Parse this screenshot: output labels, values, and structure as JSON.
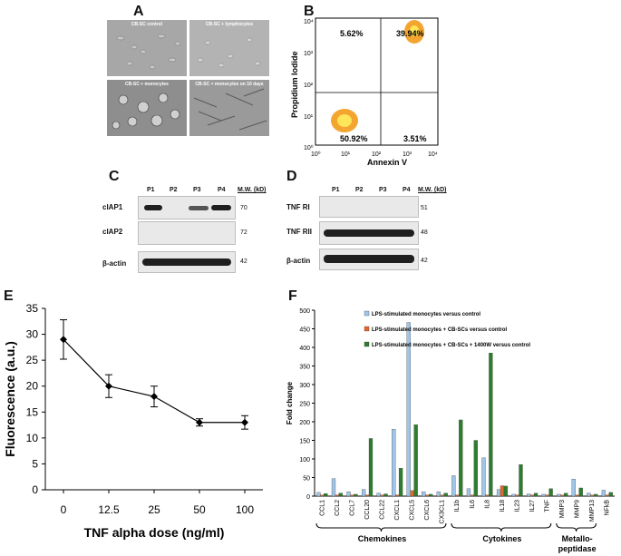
{
  "panels": {
    "A": "A",
    "B": "B",
    "C": "C",
    "D": "D",
    "E": "E",
    "F": "F"
  },
  "panelA": {
    "captions": [
      "CB-SC control",
      "CB-SC + lymphocytes",
      "CB-SC + monocytes",
      "CB-SC + monocytes on 10 days"
    ]
  },
  "panelB": {
    "xlabel": "Annexin V",
    "ylabel": "Propidium Iodide",
    "quadrants": {
      "ul": "5.62%",
      "ur": "39.94%",
      "ll": "50.92%",
      "lr": "3.51%"
    },
    "ticks": [
      "10⁰",
      "10¹",
      "10²",
      "10³",
      "10⁴"
    ]
  },
  "panelC": {
    "lanes": [
      "P1",
      "P2",
      "P3",
      "P4"
    ],
    "mw_header": "M.W. (kD)",
    "rows": [
      {
        "label": "cIAP1",
        "mw": "70"
      },
      {
        "label": "cIAP2",
        "mw": "72"
      },
      {
        "label": "β-actin",
        "mw": "42"
      }
    ]
  },
  "panelD": {
    "lanes": [
      "P1",
      "P2",
      "P3",
      "P4"
    ],
    "mw_header": "M.W. (kD)",
    "rows": [
      {
        "label": "TNF RI",
        "mw": "51"
      },
      {
        "label": "TNF RII",
        "mw": "48"
      },
      {
        "label": "β-actin",
        "mw": "42"
      }
    ]
  },
  "chart_data": [
    {
      "panel": "E",
      "type": "line",
      "xlabel": "TNF alpha dose (ng/ml)",
      "ylabel": "Fluorescence (a.u.)",
      "categories": [
        "0",
        "12.5",
        "25",
        "50",
        "100"
      ],
      "values": [
        29,
        20,
        18,
        13,
        13
      ],
      "errors": [
        3.8,
        2.2,
        2,
        0.7,
        1.3
      ],
      "ylim": [
        0,
        35
      ],
      "yticks": [
        0,
        5,
        10,
        15,
        20,
        25,
        30,
        35
      ]
    },
    {
      "panel": "F",
      "type": "bar",
      "ylabel": "Fold change",
      "ylim": [
        0,
        500
      ],
      "yticks": [
        0,
        50,
        100,
        150,
        200,
        250,
        300,
        350,
        400,
        450,
        500
      ],
      "categories": [
        "CCL1",
        "CCL2",
        "CCL7",
        "CCL20",
        "CCL22",
        "CXCL1",
        "CXCL5",
        "CXCL6",
        "CX3CL1",
        "IL1b",
        "IL6",
        "IL8",
        "IL18",
        "IL23",
        "IL27",
        "TNF",
        "MMP3",
        "MMP9",
        "MMP13",
        "NFkB"
      ],
      "series": [
        {
          "name": "LPS-stimulated monocytes versus control",
          "color": "#9fc5e8",
          "values": [
            10,
            47,
            12,
            18,
            8,
            180,
            467,
            12,
            12,
            55,
            20,
            103,
            18,
            5,
            6,
            5,
            5,
            46,
            8,
            16
          ]
        },
        {
          "name": "LPS-stimulated monocytes + CB-SCs versus control",
          "color": "#e2682a",
          "values": [
            3,
            3,
            3,
            3,
            3,
            3,
            15,
            3,
            3,
            3,
            3,
            3,
            28,
            3,
            3,
            3,
            3,
            3,
            3,
            3
          ]
        },
        {
          "name": "LPS-stimulated monocytes + CB-SCs + 1400W versus control",
          "color": "#2e7d2e",
          "values": [
            7,
            8,
            5,
            155,
            6,
            75,
            192,
            5,
            8,
            205,
            150,
            385,
            27,
            85,
            8,
            20,
            8,
            22,
            5,
            10
          ]
        }
      ],
      "groups": [
        {
          "label": "Chemokines"
        },
        {
          "label": "Cytokines"
        },
        {
          "label": "Metallo-\npeptidase"
        }
      ]
    }
  ]
}
